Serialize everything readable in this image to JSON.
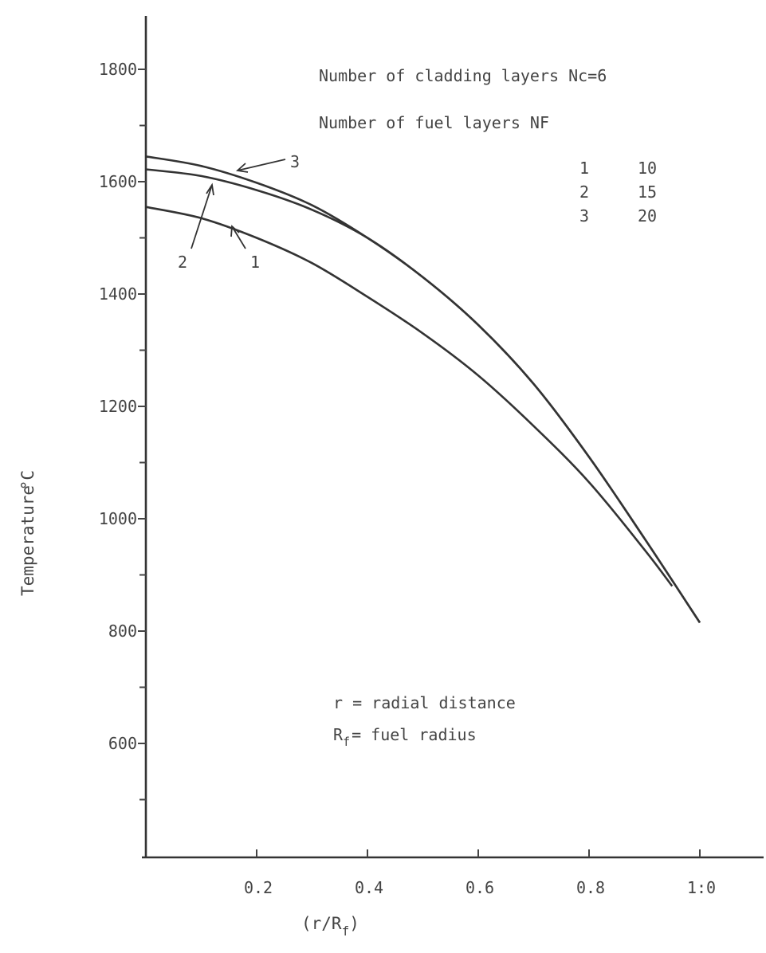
{
  "chart_data": {
    "type": "line",
    "xlabel": "(r/R",
    "xlabel_sub": "f",
    "xlabel_close": ")",
    "ylabel": "Temperature",
    "ylabel_unit": "°C",
    "xlim": [
      0,
      1.1
    ],
    "ylim": [
      430,
      1880
    ],
    "x_ticks": [
      0.2,
      0.4,
      0.6,
      0.8,
      1.0
    ],
    "x_tick_labels": [
      "0.2",
      "0.4",
      "0.6",
      "0.8",
      "1:0"
    ],
    "y_ticks": [
      600,
      800,
      1000,
      1200,
      1400,
      1600,
      1800
    ],
    "y_tick_labels": [
      "600",
      "800",
      "1000",
      "1200",
      "1400",
      "1600",
      "1800"
    ],
    "y_minor_ticks": [
      500,
      700,
      900,
      1100,
      1300,
      1500,
      1700
    ],
    "grid": false,
    "series": [
      {
        "name": "1",
        "x": [
          0,
          0.1,
          0.2,
          0.3,
          0.4,
          0.5,
          0.6,
          0.7,
          0.8,
          0.9,
          0.95
        ],
        "values": [
          1555,
          1535,
          1500,
          1455,
          1395,
          1330,
          1255,
          1165,
          1065,
          945,
          880
        ]
      },
      {
        "name": "2",
        "x": [
          0,
          0.1,
          0.2,
          0.3,
          0.4,
          0.5,
          0.6,
          0.7,
          0.8,
          0.9,
          1.0
        ],
        "values": [
          1622,
          1610,
          1585,
          1550,
          1500,
          1430,
          1345,
          1240,
          1110,
          965,
          815
        ]
      },
      {
        "name": "3",
        "x": [
          0,
          0.1,
          0.2,
          0.3,
          0.4,
          0.5,
          0.6,
          0.7,
          0.8,
          0.9,
          1.0
        ],
        "values": [
          1645,
          1628,
          1598,
          1558,
          1500,
          1430,
          1345,
          1240,
          1110,
          965,
          815
        ]
      }
    ],
    "legend": {
      "line1": "Number of cladding layers Nc=6",
      "line2": "Number of fuel layers NF",
      "rows": [
        {
          "curve": "1",
          "nf": "10"
        },
        {
          "curve": "2",
          "nf": "15"
        },
        {
          "curve": "3",
          "nf": "20"
        }
      ]
    },
    "annotations": {
      "line1_a": "r = radial distance",
      "line2_a": "R",
      "line2_sub": "f",
      "line2_b": "= fuel radius"
    }
  }
}
